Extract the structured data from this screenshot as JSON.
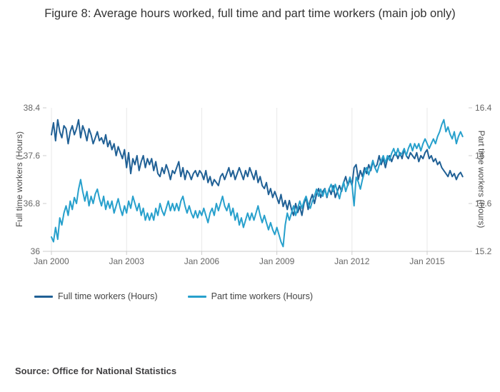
{
  "title": "Figure 8: Average hours worked, full time and part time workers (main job only)",
  "source": "Source: Office for National Statistics",
  "legend": {
    "items": [
      {
        "label": "Full time workers (Hours)",
        "color": "#206095"
      },
      {
        "label": "Part time workers (Hours)",
        "color": "#27A0CC"
      }
    ]
  },
  "chart_data": {
    "type": "line",
    "title": "Figure 8: Average hours worked, full time and part time workers (main job only)",
    "x_start": "2000-01",
    "x_frequency": "monthly",
    "x_axis": {
      "tick_labels": [
        "Jan 2000",
        "Jan 2003",
        "Jan 2006",
        "Jan 2009",
        "Jan 2012",
        "Jan 2015"
      ],
      "tick_positions_months": [
        0,
        36,
        72,
        108,
        144,
        180
      ]
    },
    "y_left": {
      "label": "Full time workers (Hours)",
      "range": [
        36,
        38.4
      ],
      "ticks": [
        36,
        36.8,
        37.6,
        38.4
      ]
    },
    "y_right": {
      "label": "Part time workers (Hours)",
      "range": [
        15.2,
        16.4
      ],
      "ticks": [
        15.2,
        15.6,
        16,
        16.4
      ]
    },
    "grid": "vertical-only",
    "legend_position": "bottom-left",
    "series": [
      {
        "name": "Full time workers (Hours)",
        "axis": "left",
        "color": "#206095",
        "values": [
          37.95,
          38.15,
          37.85,
          38.2,
          38.0,
          37.9,
          38.1,
          38.05,
          37.8,
          38.0,
          38.1,
          37.95,
          38.05,
          38.2,
          37.9,
          38.1,
          38.0,
          37.85,
          38.05,
          37.95,
          37.8,
          37.9,
          38.0,
          37.85,
          37.9,
          37.8,
          37.95,
          37.75,
          37.85,
          37.7,
          37.8,
          37.6,
          37.75,
          37.65,
          37.55,
          37.7,
          37.4,
          37.65,
          37.3,
          37.55,
          37.45,
          37.6,
          37.35,
          37.5,
          37.6,
          37.4,
          37.55,
          37.45,
          37.55,
          37.35,
          37.5,
          37.3,
          37.25,
          37.4,
          37.3,
          37.45,
          37.35,
          37.2,
          37.35,
          37.3,
          37.4,
          37.5,
          37.25,
          37.4,
          37.2,
          37.35,
          37.3,
          37.2,
          37.3,
          37.35,
          37.25,
          37.35,
          37.3,
          37.2,
          37.35,
          37.15,
          37.25,
          37.1,
          37.2,
          37.15,
          37.1,
          37.25,
          37.3,
          37.2,
          37.3,
          37.4,
          37.25,
          37.35,
          37.2,
          37.3,
          37.4,
          37.3,
          37.2,
          37.35,
          37.25,
          37.4,
          37.3,
          37.2,
          37.35,
          37.15,
          37.25,
          37.1,
          37.05,
          37.15,
          36.95,
          37.05,
          36.9,
          37.0,
          36.9,
          36.8,
          36.95,
          36.75,
          36.85,
          36.7,
          36.85,
          36.7,
          36.6,
          36.8,
          36.65,
          36.75,
          36.6,
          36.8,
          36.9,
          36.7,
          36.85,
          36.95,
          36.8,
          36.95,
          37.05,
          36.9,
          37.0,
          37.05,
          36.9,
          37.05,
          36.95,
          37.1,
          36.9,
          37.0,
          37.1,
          37.0,
          37.15,
          37.25,
          37.1,
          37.2,
          37.1,
          37.4,
          37.45,
          37.2,
          37.35,
          37.25,
          37.4,
          37.3,
          37.45,
          37.35,
          37.5,
          37.4,
          37.45,
          37.6,
          37.45,
          37.55,
          37.4,
          37.55,
          37.6,
          37.5,
          37.6,
          37.65,
          37.55,
          37.65,
          37.55,
          37.7,
          37.6,
          37.55,
          37.65,
          37.6,
          37.55,
          37.65,
          37.5,
          37.6,
          37.55,
          37.65,
          37.7,
          37.55,
          37.6,
          37.5,
          37.55,
          37.45,
          37.5,
          37.4,
          37.35,
          37.3,
          37.25,
          37.35,
          37.25,
          37.3,
          37.2,
          37.28,
          37.32,
          37.25
        ]
      },
      {
        "name": "Part time workers (Hours)",
        "axis": "right",
        "color": "#27A0CC",
        "values": [
          15.32,
          15.28,
          15.4,
          15.3,
          15.48,
          15.42,
          15.52,
          15.58,
          15.5,
          15.62,
          15.55,
          15.65,
          15.6,
          15.72,
          15.8,
          15.7,
          15.62,
          15.7,
          15.58,
          15.66,
          15.6,
          15.68,
          15.72,
          15.64,
          15.58,
          15.66,
          15.55,
          15.62,
          15.56,
          15.62,
          15.52,
          15.58,
          15.64,
          15.56,
          15.5,
          15.58,
          15.52,
          15.62,
          15.56,
          15.66,
          15.6,
          15.54,
          15.6,
          15.5,
          15.56,
          15.46,
          15.52,
          15.46,
          15.52,
          15.46,
          15.56,
          15.5,
          15.6,
          15.54,
          15.5,
          15.56,
          15.62,
          15.54,
          15.6,
          15.54,
          15.6,
          15.54,
          15.62,
          15.66,
          15.58,
          15.52,
          15.58,
          15.52,
          15.48,
          15.54,
          15.48,
          15.54,
          15.5,
          15.56,
          15.5,
          15.44,
          15.52,
          15.56,
          15.5,
          15.6,
          15.54,
          15.6,
          15.66,
          15.58,
          15.54,
          15.6,
          15.5,
          15.56,
          15.46,
          15.52,
          15.42,
          15.48,
          15.4,
          15.46,
          15.52,
          15.46,
          15.52,
          15.46,
          15.52,
          15.58,
          15.5,
          15.44,
          15.5,
          15.44,
          15.38,
          15.44,
          15.38,
          15.34,
          15.4,
          15.34,
          15.28,
          15.24,
          15.42,
          15.52,
          15.46,
          15.52,
          15.58,
          15.5,
          15.56,
          15.62,
          15.56,
          15.62,
          15.66,
          15.6,
          15.56,
          15.62,
          15.66,
          15.72,
          15.66,
          15.72,
          15.66,
          15.72,
          15.66,
          15.72,
          15.76,
          15.7,
          15.76,
          15.7,
          15.64,
          15.72,
          15.78,
          15.7,
          15.76,
          15.82,
          15.76,
          15.58,
          15.82,
          15.78,
          15.72,
          15.8,
          15.86,
          15.9,
          15.84,
          15.9,
          15.96,
          15.9,
          15.86,
          15.92,
          15.96,
          16.0,
          15.94,
          16.0,
          15.96,
          16.02,
          16.06,
          16.0,
          16.06,
          16.0,
          16.02,
          16.06,
          16.0,
          16.06,
          16.1,
          16.04,
          16.1,
          16.06,
          16.1,
          16.04,
          16.1,
          16.14,
          16.1,
          16.06,
          16.1,
          16.14,
          16.1,
          16.16,
          16.2,
          16.26,
          16.3,
          16.2,
          16.24,
          16.18,
          16.14,
          16.2,
          16.1,
          16.16,
          16.2,
          16.16
        ]
      }
    ]
  }
}
